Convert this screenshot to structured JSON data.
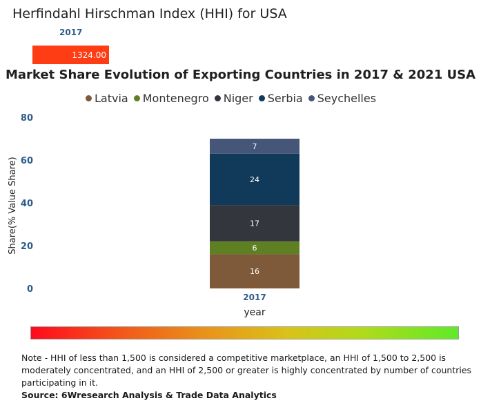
{
  "hhi": {
    "title": "Herfindahl Hirschman Index (HHI) for USA",
    "year": "2017",
    "value_label": "1324.00",
    "color": "#ff3d14"
  },
  "chart_data": {
    "type": "bar",
    "stacked": true,
    "title": "Market Share Evolution of Exporting Countries in 2017 & 2021 USA",
    "xlabel": "year",
    "ylabel": "Share(% Value Share)",
    "categories": [
      "2017"
    ],
    "ylim": [
      0,
      80
    ],
    "yticks": [
      "80",
      "60",
      "40",
      "20",
      "0"
    ],
    "legend_position": "top",
    "series": [
      {
        "name": "Latvia",
        "values": [
          16
        ],
        "color": "#7f5a3a"
      },
      {
        "name": "Montenegro",
        "values": [
          6
        ],
        "color": "#5f7f23"
      },
      {
        "name": "Niger",
        "values": [
          17
        ],
        "color": "#33363d"
      },
      {
        "name": "Serbia",
        "values": [
          24
        ],
        "color": "#113a5a"
      },
      {
        "name": "Seychelles",
        "values": [
          7
        ],
        "color": "#455679"
      }
    ]
  },
  "scale": {
    "gradient_colors": [
      "#ff0a1e",
      "#f25a1a",
      "#e8961a",
      "#d9c21a",
      "#aedb1a",
      "#5fea2a"
    ]
  },
  "footer": {
    "note": "Note - HHI of less than 1,500 is considered a competitive marketplace, an HHI of 1,500 to 2,500 is moderately concentrated, and an HHI of 2,500 or greater is highly concentrated by number of countries participating in it.",
    "source": "Source: 6Wresearch Analysis & Trade Data Analytics"
  }
}
